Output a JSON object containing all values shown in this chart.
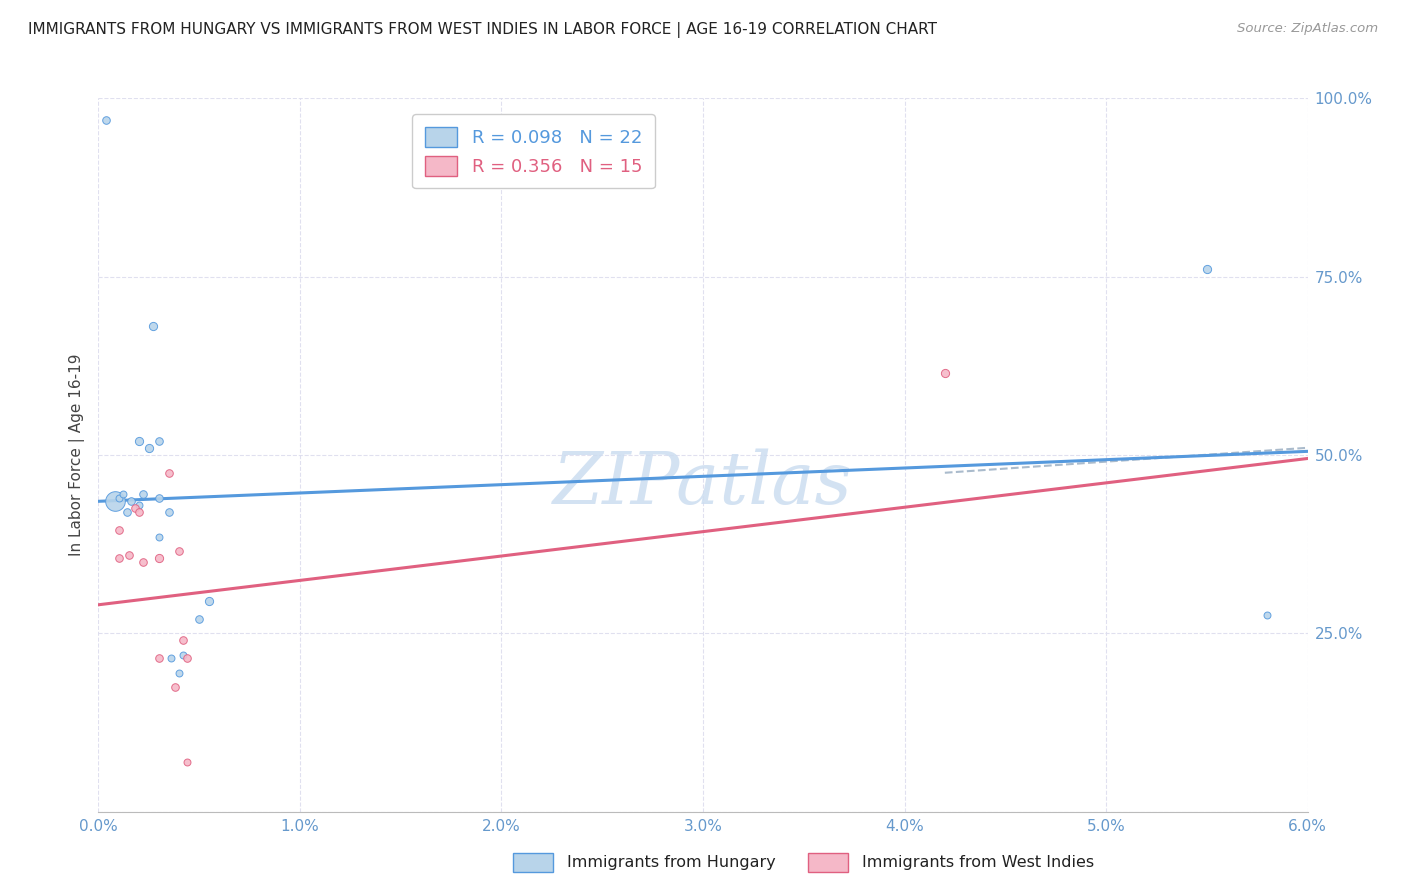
{
  "title": "IMMIGRANTS FROM HUNGARY VS IMMIGRANTS FROM WEST INDIES IN LABOR FORCE | AGE 16-19 CORRELATION CHART",
  "source": "Source: ZipAtlas.com",
  "ylabel": "In Labor Force | Age 16-19",
  "xlim": [
    0.0,
    0.06
  ],
  "ylim": [
    0.0,
    1.0
  ],
  "ytick_positions": [
    0.0,
    0.25,
    0.5,
    0.75,
    1.0
  ],
  "ytick_labels": [
    "",
    "25.0%",
    "50.0%",
    "75.0%",
    "100.0%"
  ],
  "xtick_positions": [
    0.0,
    0.01,
    0.02,
    0.03,
    0.04,
    0.05,
    0.06
  ],
  "xtick_labels": [
    "0.0%",
    "1.0%",
    "2.0%",
    "3.0%",
    "4.0%",
    "5.0%",
    "6.0%"
  ],
  "hungary_R": 0.098,
  "hungary_N": 22,
  "westindies_R": 0.356,
  "westindies_N": 15,
  "legend_label1": "Immigrants from Hungary",
  "legend_label2": "Immigrants from West Indies",
  "hungary_color": "#b8d4ea",
  "westindies_color": "#f5b8c8",
  "hungary_line_color": "#5599dd",
  "westindies_line_color": "#e06080",
  "hungary_trend": [
    0.435,
    0.505
  ],
  "westindies_trend": [
    0.29,
    0.495
  ],
  "hun_trend_x": [
    0.0,
    0.06
  ],
  "wi_trend_x": [
    0.0,
    0.06
  ],
  "dashed_line": {
    "x": [
      0.042,
      0.06
    ],
    "y": [
      0.475,
      0.51
    ]
  },
  "hungary_points": [
    [
      0.0004,
      0.97,
      30
    ],
    [
      0.0008,
      0.435,
      200
    ],
    [
      0.001,
      0.44,
      25
    ],
    [
      0.0012,
      0.445,
      25
    ],
    [
      0.0014,
      0.42,
      30
    ],
    [
      0.0016,
      0.435,
      30
    ],
    [
      0.002,
      0.52,
      35
    ],
    [
      0.002,
      0.43,
      25
    ],
    [
      0.0022,
      0.445,
      30
    ],
    [
      0.0025,
      0.51,
      35
    ],
    [
      0.0027,
      0.68,
      35
    ],
    [
      0.003,
      0.52,
      30
    ],
    [
      0.003,
      0.44,
      30
    ],
    [
      0.003,
      0.385,
      25
    ],
    [
      0.0035,
      0.42,
      30
    ],
    [
      0.0036,
      0.215,
      25
    ],
    [
      0.004,
      0.195,
      25
    ],
    [
      0.0042,
      0.22,
      25
    ],
    [
      0.005,
      0.27,
      30
    ],
    [
      0.0055,
      0.295,
      35
    ],
    [
      0.055,
      0.76,
      35
    ],
    [
      0.058,
      0.275,
      25
    ]
  ],
  "westindies_points": [
    [
      0.001,
      0.395,
      30
    ],
    [
      0.001,
      0.355,
      30
    ],
    [
      0.0015,
      0.36,
      30
    ],
    [
      0.0018,
      0.425,
      30
    ],
    [
      0.002,
      0.42,
      30
    ],
    [
      0.0022,
      0.35,
      30
    ],
    [
      0.003,
      0.355,
      35
    ],
    [
      0.003,
      0.215,
      30
    ],
    [
      0.0035,
      0.475,
      30
    ],
    [
      0.0038,
      0.175,
      30
    ],
    [
      0.004,
      0.365,
      30
    ],
    [
      0.0042,
      0.24,
      30
    ],
    [
      0.0044,
      0.07,
      25
    ],
    [
      0.0044,
      0.215,
      30
    ],
    [
      0.042,
      0.615,
      35
    ]
  ],
  "watermark_text": "ZIPatlas",
  "watermark_color": "#ccddf0",
  "grid_color": "#ddddee",
  "tick_color": "#6699cc"
}
